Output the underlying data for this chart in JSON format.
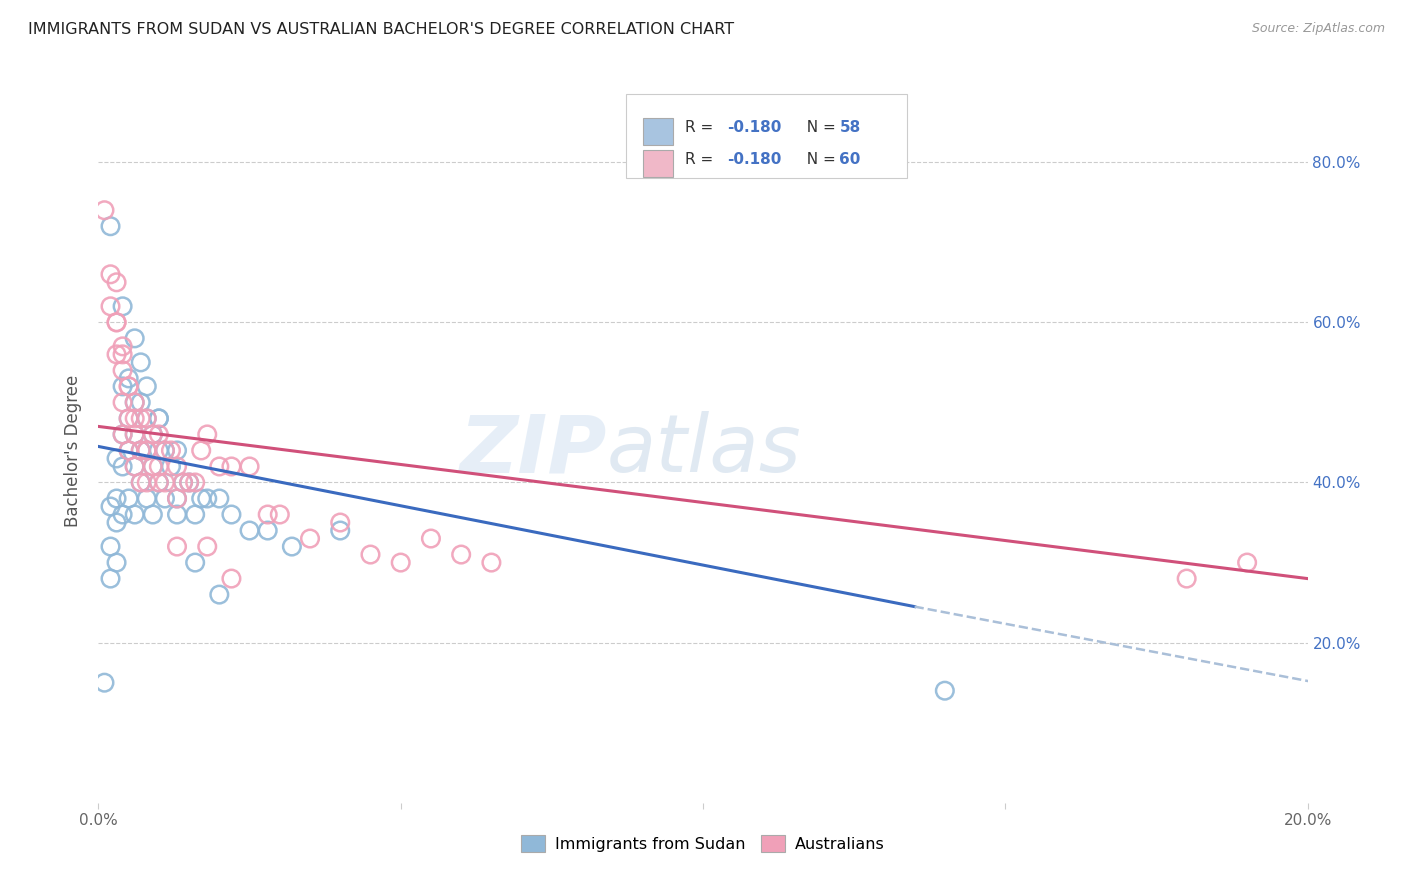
{
  "title": "IMMIGRANTS FROM SUDAN VS AUSTRALIAN BACHELOR'S DEGREE CORRELATION CHART",
  "source": "Source: ZipAtlas.com",
  "ylabel": "Bachelor's Degree",
  "ytick_values": [
    0.8,
    0.6,
    0.4,
    0.2
  ],
  "ytick_labels": [
    "80.0%",
    "60.0%",
    "40.0%",
    "20.0%"
  ],
  "xmin": 0.0,
  "xmax": 0.2,
  "ymin": 0.0,
  "ymax": 0.88,
  "legend_color1": "#a8c4e0",
  "legend_color2": "#f0b8c8",
  "scatter_color_blue": "#90b8d8",
  "scatter_color_pink": "#f0a0b8",
  "line_color_blue": "#3a6abf",
  "line_color_pink": "#d0507a",
  "line_color_dashed": "#aabfd8",
  "legend_label1": "Immigrants from Sudan",
  "legend_label2": "Australians",
  "blue_scatter_x": [
    0.001,
    0.002,
    0.002,
    0.002,
    0.003,
    0.003,
    0.003,
    0.003,
    0.004,
    0.004,
    0.004,
    0.004,
    0.005,
    0.005,
    0.005,
    0.005,
    0.006,
    0.006,
    0.006,
    0.006,
    0.007,
    0.007,
    0.007,
    0.008,
    0.008,
    0.008,
    0.009,
    0.009,
    0.009,
    0.01,
    0.01,
    0.01,
    0.011,
    0.011,
    0.012,
    0.013,
    0.013,
    0.014,
    0.015,
    0.016,
    0.017,
    0.018,
    0.02,
    0.022,
    0.025,
    0.028,
    0.032,
    0.04,
    0.002,
    0.004,
    0.006,
    0.007,
    0.008,
    0.01,
    0.013,
    0.016,
    0.02,
    0.14
  ],
  "blue_scatter_y": [
    0.15,
    0.37,
    0.32,
    0.28,
    0.43,
    0.38,
    0.35,
    0.3,
    0.52,
    0.46,
    0.42,
    0.36,
    0.53,
    0.48,
    0.44,
    0.38,
    0.5,
    0.46,
    0.42,
    0.36,
    0.5,
    0.44,
    0.4,
    0.48,
    0.44,
    0.38,
    0.46,
    0.42,
    0.36,
    0.48,
    0.44,
    0.4,
    0.44,
    0.38,
    0.42,
    0.44,
    0.38,
    0.4,
    0.4,
    0.36,
    0.38,
    0.38,
    0.38,
    0.36,
    0.34,
    0.34,
    0.32,
    0.34,
    0.72,
    0.62,
    0.58,
    0.55,
    0.52,
    0.48,
    0.36,
    0.3,
    0.26,
    0.14
  ],
  "pink_scatter_x": [
    0.001,
    0.002,
    0.002,
    0.003,
    0.003,
    0.003,
    0.004,
    0.004,
    0.004,
    0.004,
    0.005,
    0.005,
    0.005,
    0.006,
    0.006,
    0.006,
    0.007,
    0.007,
    0.007,
    0.008,
    0.008,
    0.008,
    0.009,
    0.009,
    0.01,
    0.01,
    0.011,
    0.011,
    0.012,
    0.013,
    0.013,
    0.014,
    0.015,
    0.016,
    0.017,
    0.018,
    0.02,
    0.022,
    0.025,
    0.028,
    0.03,
    0.035,
    0.04,
    0.045,
    0.05,
    0.055,
    0.06,
    0.065,
    0.003,
    0.004,
    0.005,
    0.006,
    0.008,
    0.01,
    0.013,
    0.018,
    0.022,
    0.18,
    0.19
  ],
  "pink_scatter_y": [
    0.74,
    0.66,
    0.62,
    0.65,
    0.6,
    0.56,
    0.57,
    0.54,
    0.5,
    0.46,
    0.52,
    0.48,
    0.44,
    0.5,
    0.46,
    0.42,
    0.48,
    0.44,
    0.4,
    0.48,
    0.44,
    0.4,
    0.46,
    0.42,
    0.46,
    0.42,
    0.44,
    0.4,
    0.44,
    0.42,
    0.38,
    0.4,
    0.4,
    0.4,
    0.44,
    0.46,
    0.42,
    0.42,
    0.42,
    0.36,
    0.36,
    0.33,
    0.35,
    0.31,
    0.3,
    0.33,
    0.31,
    0.3,
    0.6,
    0.56,
    0.52,
    0.48,
    0.44,
    0.4,
    0.32,
    0.32,
    0.28,
    0.28,
    0.3
  ],
  "blue_line_x": [
    0.0,
    0.135
  ],
  "blue_line_y": [
    0.445,
    0.245
  ],
  "pink_line_x": [
    0.0,
    0.2
  ],
  "pink_line_y": [
    0.47,
    0.28
  ],
  "dashed_line_x": [
    0.135,
    0.205
  ],
  "dashed_line_y": [
    0.245,
    0.145
  ]
}
